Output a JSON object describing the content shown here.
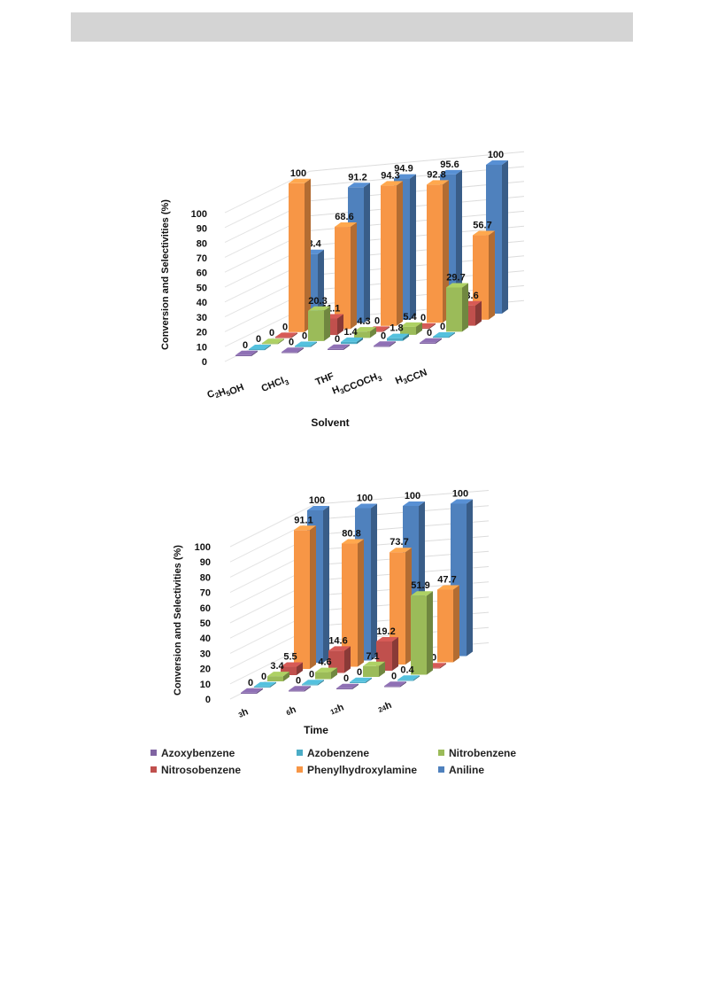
{
  "chart_data": [
    {
      "type": "bar",
      "categories": [
        "C2H5OH",
        "CHCl3",
        "THF",
        "H3CCOCH3",
        "H3CCN"
      ],
      "xlabel": "Solvent",
      "ylabel": "Conversion and Selectivities (%)",
      "ylim": [
        0,
        100
      ],
      "yticks": [
        "0",
        "10",
        "20",
        "30",
        "40",
        "50",
        "60",
        "70",
        "80",
        "90",
        "100"
      ],
      "series": [
        {
          "name": "Azoxybenzene",
          "values": [
            0,
            0,
            0,
            0,
            0
          ]
        },
        {
          "name": "Azobenzene",
          "values": [
            0,
            0,
            1.4,
            1.8,
            0
          ]
        },
        {
          "name": "Nitrobenzene",
          "values": [
            0,
            20.3,
            4.3,
            5.4,
            29.7
          ]
        },
        {
          "name": "Nitrosobenzene",
          "values": [
            0,
            11.1,
            0,
            0,
            13.6
          ]
        },
        {
          "name": "Phenylhydroxylamine",
          "values": [
            100,
            68.6,
            94.3,
            92.8,
            56.7
          ]
        },
        {
          "name": "Aniline",
          "values": [
            48.4,
            91.2,
            94.9,
            95.6,
            100
          ]
        }
      ]
    },
    {
      "type": "bar",
      "categories": [
        "3h",
        "6h",
        "12h",
        "24h"
      ],
      "xlabel": "Time",
      "ylabel": "Conversion and Selectivities (%)",
      "ylim": [
        0,
        100
      ],
      "yticks": [
        "0",
        "10",
        "20",
        "30",
        "40",
        "50",
        "60",
        "70",
        "80",
        "90",
        "100"
      ],
      "series": [
        {
          "name": "Azoxybenzene",
          "values": [
            0,
            0,
            0,
            0
          ]
        },
        {
          "name": "Azobenzene",
          "values": [
            0,
            0,
            0,
            0.4
          ]
        },
        {
          "name": "Nitrobenzene",
          "values": [
            3.4,
            4.6,
            7.1,
            51.9
          ]
        },
        {
          "name": "Nitrosobenzene",
          "values": [
            5.5,
            14.6,
            19.2,
            0
          ]
        },
        {
          "name": "Phenylhydroxylamine",
          "values": [
            91.1,
            80.8,
            73.7,
            47.7
          ]
        },
        {
          "name": "Aniline",
          "values": [
            100,
            100,
            100,
            100
          ]
        }
      ]
    }
  ],
  "series_colors": [
    "#8064a2",
    "#4bacc6",
    "#9bbb59",
    "#c0504d",
    "#f79646",
    "#4f81bd"
  ],
  "legend": {
    "rows": [
      [
        "Azoxybenzene",
        "Azobenzene",
        "Nitrobenzene"
      ],
      [
        "Nitrosobenzene",
        "Phenylhydroxylamine",
        "Aniline"
      ]
    ]
  }
}
